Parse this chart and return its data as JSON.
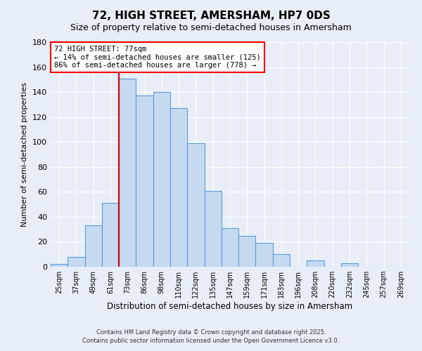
{
  "title": "72, HIGH STREET, AMERSHAM, HP7 0DS",
  "subtitle": "Size of property relative to semi-detached houses in Amersham",
  "xlabel": "Distribution of semi-detached houses by size in Amersham",
  "ylabel": "Number of semi-detached properties",
  "bar_labels": [
    "25sqm",
    "37sqm",
    "49sqm",
    "61sqm",
    "73sqm",
    "86sqm",
    "98sqm",
    "110sqm",
    "122sqm",
    "135sqm",
    "147sqm",
    "159sqm",
    "171sqm",
    "183sqm",
    "196sqm",
    "208sqm",
    "220sqm",
    "232sqm",
    "245sqm",
    "257sqm",
    "269sqm"
  ],
  "bar_values": [
    2,
    8,
    33,
    51,
    151,
    137,
    140,
    127,
    99,
    61,
    31,
    25,
    19,
    10,
    0,
    5,
    0,
    3,
    0,
    0,
    0
  ],
  "bar_color": "#c5d9f1",
  "bar_edge_color": "#5b9bd5",
  "ylim": [
    0,
    180
  ],
  "yticks": [
    0,
    20,
    40,
    60,
    80,
    100,
    120,
    140,
    160,
    180
  ],
  "vline_index": 4,
  "vline_color": "#cc0000",
  "annotation_title": "72 HIGH STREET: 77sqm",
  "annotation_line1": "← 14% of semi-detached houses are smaller (125)",
  "annotation_line2": "86% of semi-detached houses are larger (778) →",
  "footer1": "Contains HM Land Registry data © Crown copyright and database right 2025.",
  "footer2": "Contains public sector information licensed under the Open Government Licence v3.0.",
  "background_color": "#e8eef8",
  "grid_color": "#ffffff",
  "title_fontsize": 11,
  "subtitle_fontsize": 9
}
